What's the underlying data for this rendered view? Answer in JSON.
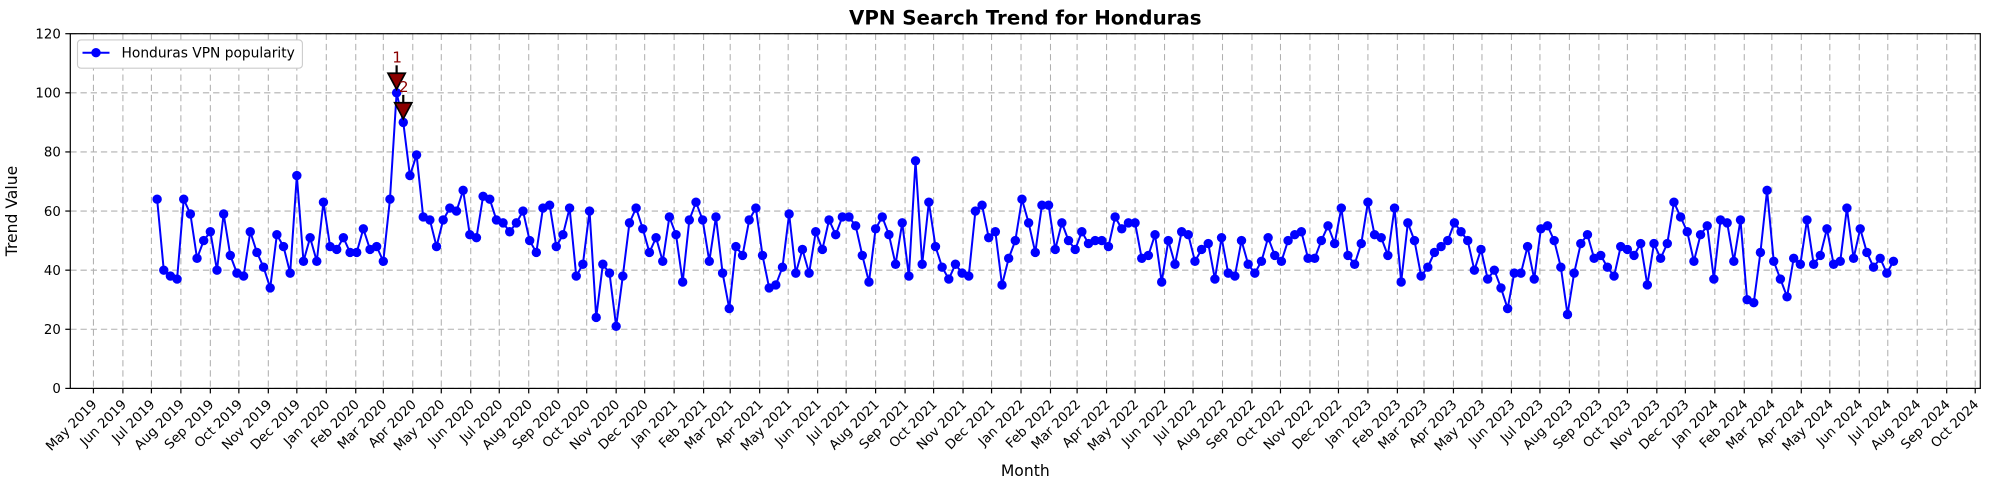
{
  "page": {
    "background": "#ffffff"
  },
  "chart_data": {
    "type": "line",
    "title": "VPN Search Trend for Honduras",
    "xlabel": "Month",
    "ylabel": "Trend Value",
    "legend": {
      "label": "Honduras VPN popularity",
      "position": "upper left"
    },
    "ylim": [
      0,
      120
    ],
    "yticks": [
      0,
      20,
      40,
      60,
      80,
      100,
      120
    ],
    "x_start_date": "2019-07-07",
    "x_interval_days": 7,
    "x_margin_frac": 0.05,
    "x_ticks": [
      "May 2019",
      "Jun 2019",
      "Jul 2019",
      "Aug 2019",
      "Sep 2019",
      "Oct 2019",
      "Nov 2019",
      "Dec 2019",
      "Jan 2020",
      "Feb 2020",
      "Mar 2020",
      "Apr 2020",
      "May 2020",
      "Jun 2020",
      "Jul 2020",
      "Aug 2020",
      "Sep 2020",
      "Oct 2020",
      "Nov 2020",
      "Dec 2020",
      "Jan 2021",
      "Feb 2021",
      "Mar 2021",
      "Apr 2021",
      "May 2021",
      "Jun 2021",
      "Jul 2021",
      "Aug 2021",
      "Sep 2021",
      "Oct 2021",
      "Nov 2021",
      "Dec 2021",
      "Jan 2022",
      "Feb 2022",
      "Mar 2022",
      "Apr 2022",
      "May 2022",
      "Jun 2022",
      "Jul 2022",
      "Aug 2022",
      "Sep 2022",
      "Oct 2022",
      "Nov 2022",
      "Dec 2022",
      "Jan 2023",
      "Feb 2023",
      "Mar 2023",
      "Apr 2023",
      "May 2023",
      "Jun 2023",
      "Jul 2023",
      "Aug 2023",
      "Sep 2023",
      "Oct 2023",
      "Nov 2023",
      "Dec 2023",
      "Jan 2024",
      "Feb 2024",
      "Mar 2024",
      "Apr 2024",
      "May 2024",
      "Jun 2024",
      "Jul 2024",
      "Aug 2024",
      "Sep 2024",
      "Oct 2024"
    ],
    "grid": true,
    "series": [
      {
        "name": "Honduras VPN popularity",
        "color": "#0000ff",
        "marker": "circle",
        "values": [
          64,
          40,
          38,
          37,
          64,
          59,
          44,
          50,
          53,
          40,
          59,
          45,
          39,
          38,
          53,
          46,
          41,
          34,
          52,
          48,
          39,
          72,
          43,
          51,
          43,
          63,
          48,
          47,
          51,
          46,
          46,
          54,
          47,
          48,
          43,
          64,
          100,
          90,
          72,
          79,
          58,
          57,
          48,
          57,
          61,
          60,
          67,
          52,
          51,
          65,
          64,
          57,
          56,
          53,
          56,
          60,
          50,
          46,
          61,
          62,
          48,
          52,
          61,
          38,
          42,
          60,
          24,
          42,
          39,
          21,
          38,
          56,
          61,
          54,
          46,
          51,
          43,
          58,
          52,
          36,
          57,
          63,
          57,
          43,
          58,
          39,
          27,
          48,
          45,
          57,
          61,
          45,
          34,
          35,
          41,
          59,
          39,
          47,
          39,
          53,
          47,
          57,
          52,
          58,
          58,
          55,
          45,
          36,
          54,
          58,
          52,
          42,
          56,
          38,
          77,
          42,
          63,
          48,
          41,
          37,
          42,
          39,
          38,
          60,
          62,
          51,
          53,
          35,
          44,
          50,
          64,
          56,
          46,
          62,
          62,
          47,
          56,
          50,
          47,
          53,
          49,
          50,
          50,
          48,
          58,
          54,
          56,
          56,
          44,
          45,
          52,
          36,
          50,
          42,
          53,
          52,
          43,
          47,
          49,
          37,
          51,
          39,
          38,
          50,
          42,
          39,
          43,
          51,
          45,
          43,
          50,
          52,
          53,
          44,
          44,
          50,
          55,
          49,
          61,
          45,
          42,
          49,
          63,
          52,
          51,
          45,
          61,
          36,
          56,
          50,
          38,
          41,
          46,
          48,
          50,
          56,
          53,
          50,
          40,
          47,
          37,
          40,
          34,
          27,
          39,
          39,
          48,
          37,
          54,
          55,
          50,
          41,
          25,
          39,
          49,
          52,
          44,
          45,
          41,
          38,
          48,
          47,
          45,
          49,
          35,
          49,
          44,
          49,
          63,
          58,
          53,
          43,
          52,
          55,
          37,
          57,
          56,
          43,
          57,
          30,
          29,
          46,
          67,
          43,
          37,
          31,
          44,
          42,
          57,
          42,
          45,
          54,
          42,
          43,
          61,
          44,
          54,
          46,
          41,
          44,
          39,
          43
        ]
      }
    ],
    "annotations": [
      {
        "label": "1",
        "index": 36,
        "value": 100
      },
      {
        "label": "2",
        "index": 37,
        "value": 90
      }
    ],
    "colors": {
      "series": "#0000ff",
      "annotation": "#8b0000",
      "annotation_edge": "#000000",
      "grid": "#b0b0b0",
      "axis": "#000000",
      "text": "#000000",
      "legend_border": "#cccccc",
      "background": "#ffffff"
    }
  }
}
